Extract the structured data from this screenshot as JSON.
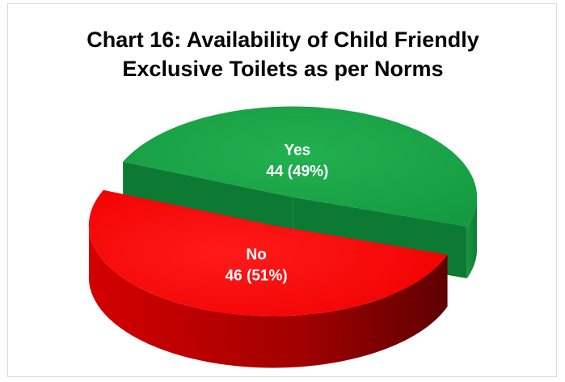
{
  "chart_data": {
    "type": "pie",
    "title_lines": [
      "Chart 16: Availability of Child Friendly",
      "Exclusive Toilets as per Norms"
    ],
    "slices": [
      {
        "label": "Yes",
        "value": 44,
        "percent": "49%",
        "display": "44 (49%)",
        "color": "#1aa64a",
        "side_color": "#0d7a33"
      },
      {
        "label": "No",
        "value": 46,
        "percent": "51%",
        "display": "46 (51%)",
        "color": "#ff0000",
        "side_color": "#a00000"
      }
    ],
    "legend": "none",
    "style": "3d-exploded"
  }
}
